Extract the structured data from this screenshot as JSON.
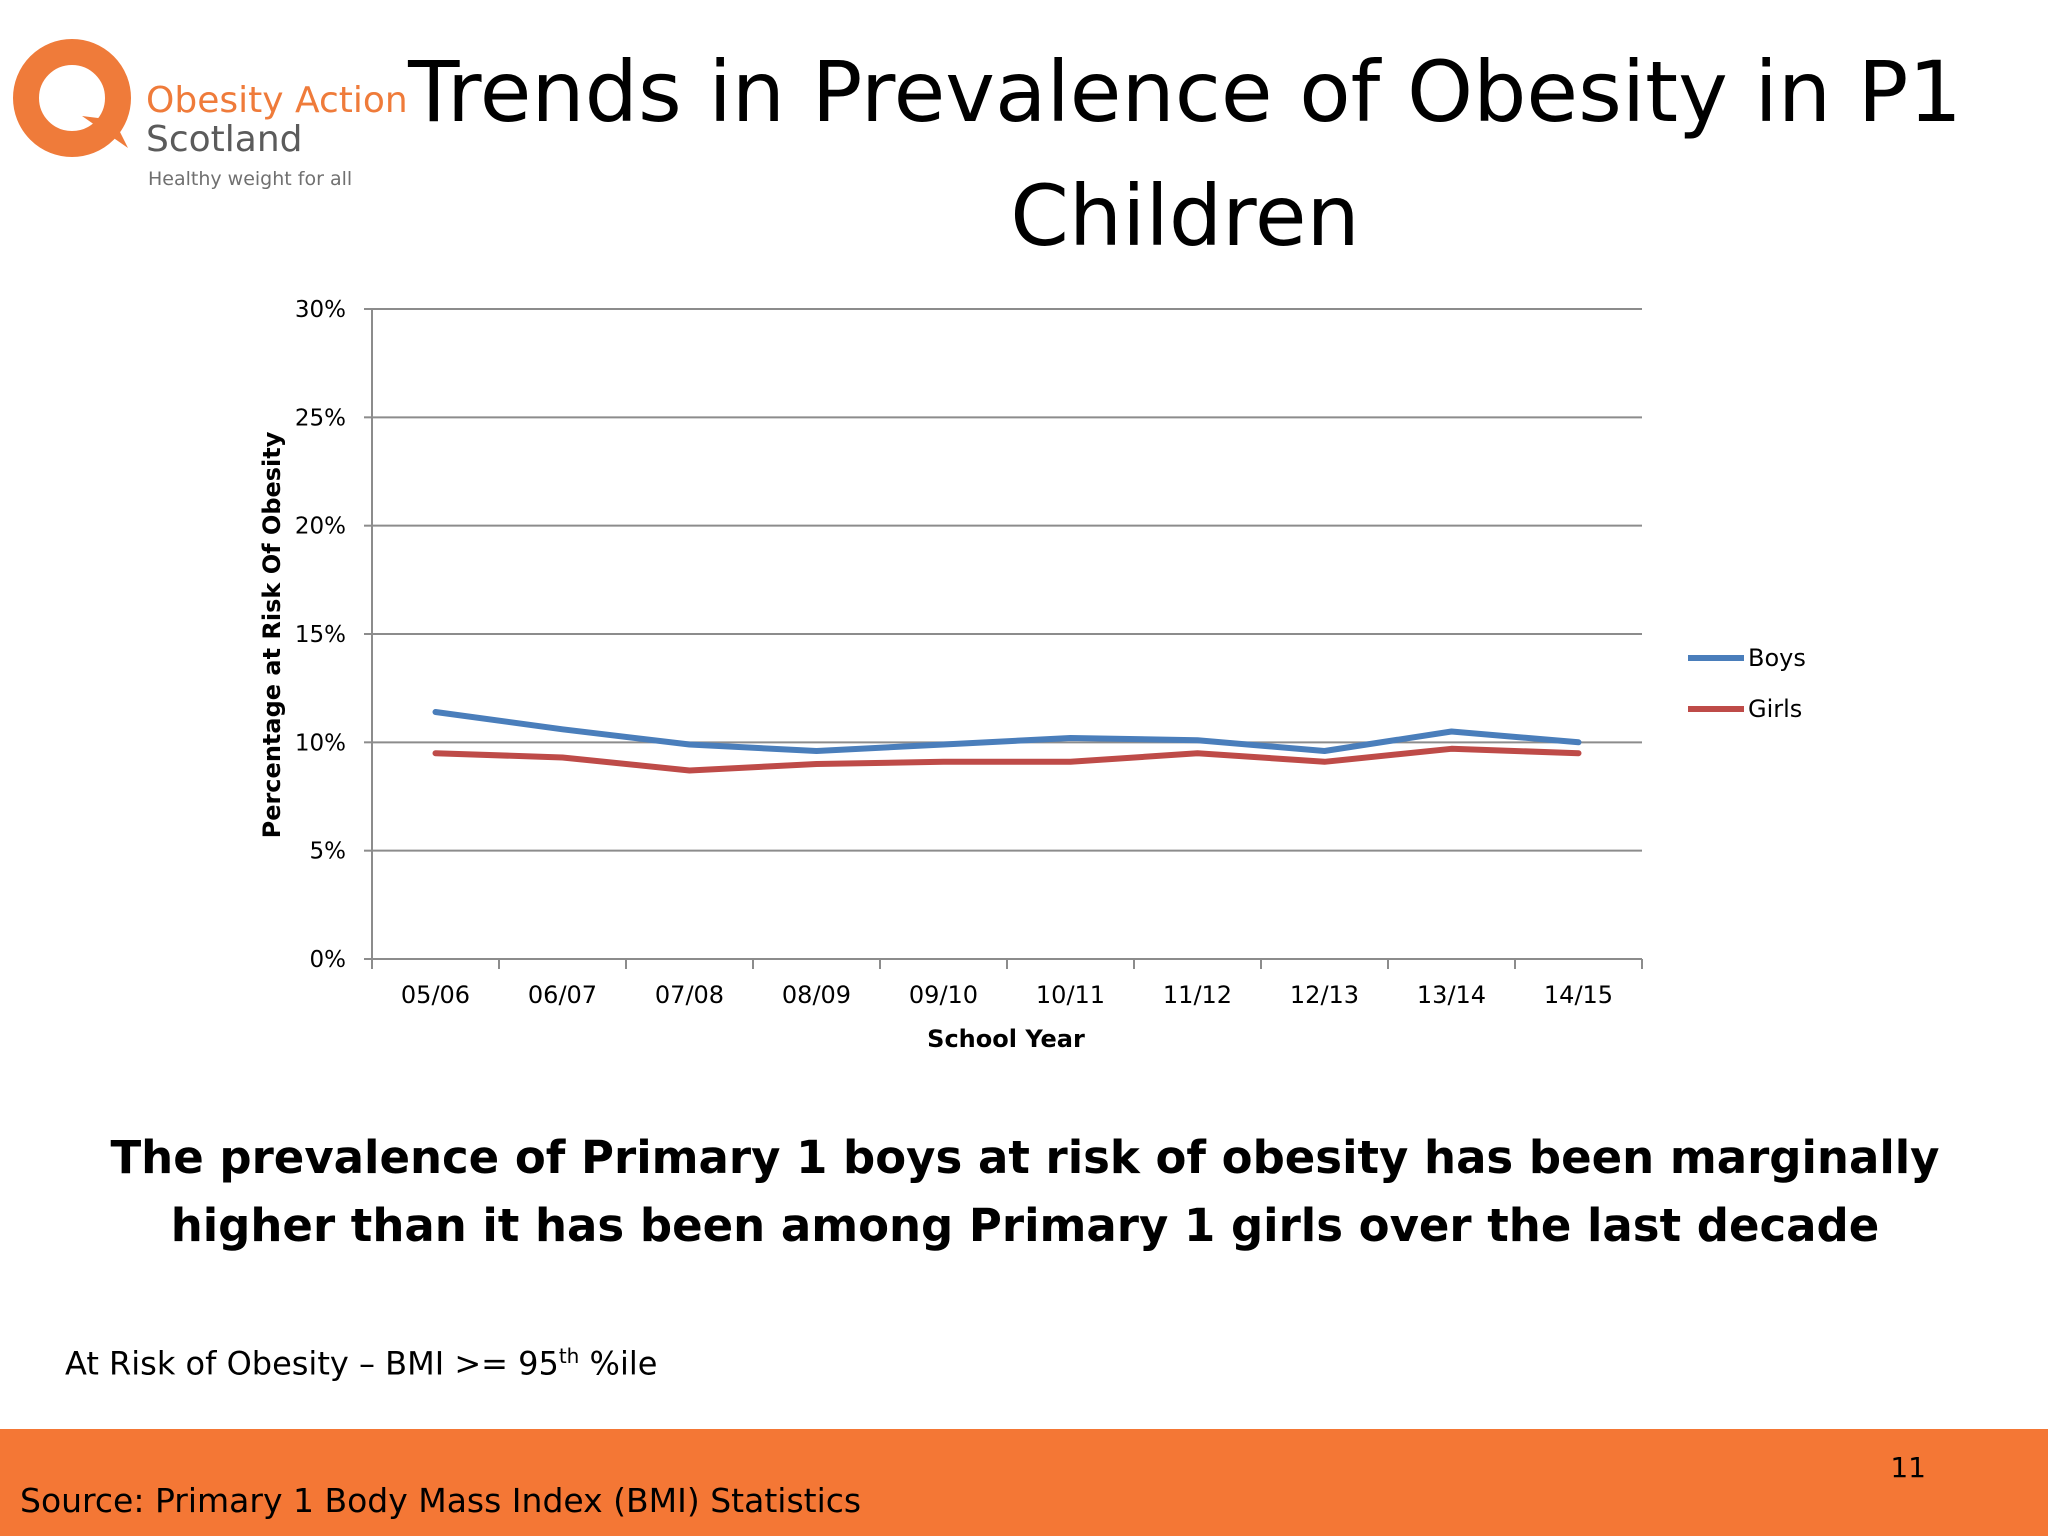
{
  "logo": {
    "name_line1": "Obesity Action",
    "name_line2": "Scotland",
    "tagline": "Healthy weight for all",
    "brand_color": "#ef7b3a",
    "icon": "q-arrow-logo-icon"
  },
  "slide": {
    "title": "Trends in Prevalence of Obesity in P1 Children",
    "takeaway": "The prevalence of Primary 1 boys at risk of obesity has been marginally higher than it has been among Primary 1 girls over the last decade",
    "footnote": {
      "text": "At Risk of Obesity – BMI >= 95",
      "superscript": "th",
      "suffix": " %ile"
    },
    "source": "Source: Primary 1 Body Mass Index (BMI) Statistics",
    "page_number": "11",
    "footer_color": "#f47735"
  },
  "chart_data": {
    "type": "line",
    "title": "",
    "xlabel": "School Year",
    "ylabel": "Percentage at Risk Of  Obesity",
    "categories": [
      "05/06",
      "06/07",
      "07/08",
      "08/09",
      "09/10",
      "10/11",
      "11/12",
      "12/13",
      "13/14",
      "14/15"
    ],
    "ylim": [
      0,
      30
    ],
    "y_ticks": [
      0,
      5,
      10,
      15,
      20,
      25,
      30
    ],
    "y_tick_labels": [
      "0%",
      "5%",
      "10%",
      "15%",
      "20%",
      "25%",
      "30%"
    ],
    "grid": true,
    "legend": "right",
    "series": [
      {
        "name": "Boys",
        "color": "#4a7ebb",
        "values": [
          11.4,
          10.6,
          9.9,
          9.6,
          9.9,
          10.2,
          10.1,
          9.6,
          10.5,
          10.0
        ]
      },
      {
        "name": "Girls",
        "color": "#be4b48",
        "values": [
          9.5,
          9.3,
          8.7,
          9.0,
          9.1,
          9.1,
          9.5,
          9.1,
          9.7,
          9.5
        ]
      }
    ]
  }
}
